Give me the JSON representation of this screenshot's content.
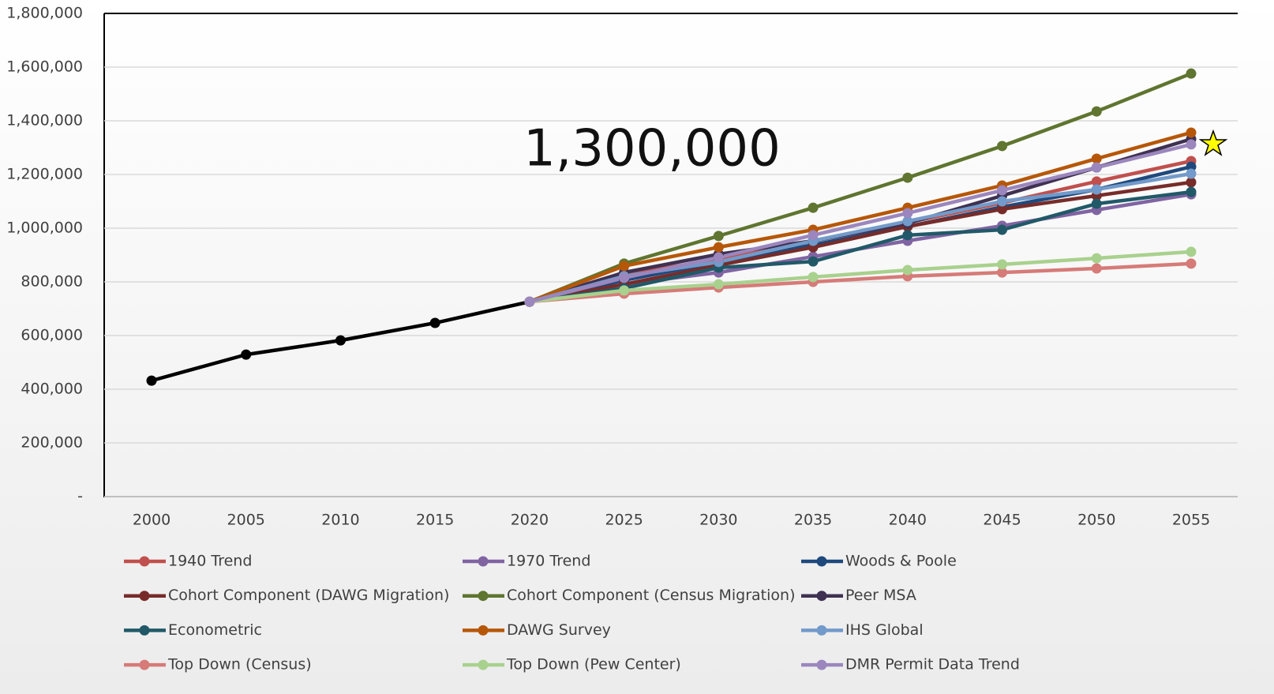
{
  "chart_data": {
    "type": "line",
    "annotation": "1,300,000",
    "categories": [
      "2000",
      "2005",
      "2010",
      "2015",
      "2020",
      "2025",
      "2030",
      "2035",
      "2040",
      "2045",
      "2050",
      "2055"
    ],
    "ylim": [
      0,
      1800000
    ],
    "yticks": [
      {
        "value": 0,
        "label": "-"
      },
      {
        "value": 200000,
        "label": "200,000"
      },
      {
        "value": 400000,
        "label": "400,000"
      },
      {
        "value": 600000,
        "label": "600,000"
      },
      {
        "value": 800000,
        "label": "800,000"
      },
      {
        "value": 1000000,
        "label": "1,000,000"
      },
      {
        "value": 1200000,
        "label": "1,200,000"
      },
      {
        "value": 1400000,
        "label": "1,400,000"
      },
      {
        "value": 1600000,
        "label": "1,600,000"
      },
      {
        "value": 1800000,
        "label": "1,800,000"
      }
    ],
    "grid": true,
    "legend": "bottom",
    "series": [
      {
        "color": "#000000",
        "values": [
          432000,
          529000,
          582000,
          647000,
          726000,
          null,
          null,
          null,
          null,
          null,
          null,
          null
        ]
      },
      {
        "name": "1940 Trend",
        "color": "#c0504d",
        "values": [
          null,
          null,
          null,
          null,
          726000,
          826000,
          885000,
          953000,
          1021000,
          1094000,
          1174000,
          1250000
        ]
      },
      {
        "name": "1970 Trend",
        "color": "#8064a2",
        "values": [
          null,
          null,
          null,
          null,
          726000,
          791000,
          835000,
          894000,
          953000,
          1009000,
          1068000,
          1126000
        ]
      },
      {
        "name": "Woods & Poole",
        "color": "#1f497d",
        "values": [
          null,
          null,
          null,
          null,
          726000,
          806000,
          874000,
          938000,
          1006000,
          1079000,
          1144000,
          1229000
        ]
      },
      {
        "name": "Cohort Component (DAWG Migration)",
        "color": "#772c2a",
        "values": [
          null,
          null,
          null,
          null,
          726000,
          791000,
          862000,
          929000,
          1006000,
          1071000,
          1121000,
          1171000
        ]
      },
      {
        "name": "Cohort Component (Census Migration)",
        "color": "#5f7530",
        "values": [
          null,
          null,
          null,
          null,
          726000,
          868000,
          971000,
          1076000,
          1188000,
          1306000,
          1435000,
          1576000
        ]
      },
      {
        "name": "Peer MSA",
        "color": "#3f3151",
        "values": [
          null,
          null,
          null,
          null,
          726000,
          835000,
          903000,
          953000,
          1018000,
          1121000,
          1226000,
          1332000
        ]
      },
      {
        "name": "Econometric",
        "color": "#215968",
        "values": [
          null,
          null,
          null,
          null,
          726000,
          776000,
          853000,
          876000,
          974000,
          994000,
          1091000,
          1135000
        ]
      },
      {
        "name": "DAWG Survey",
        "color": "#b65708",
        "values": [
          null,
          null,
          null,
          null,
          726000,
          859000,
          929000,
          994000,
          1076000,
          1159000,
          1259000,
          1356000
        ]
      },
      {
        "name": "IHS Global",
        "color": "#729aca",
        "values": [
          null,
          null,
          null,
          null,
          726000,
          821000,
          874000,
          953000,
          1026000,
          1100000,
          1144000,
          1203000
        ]
      },
      {
        "name": "Top Down (Census)",
        "color": "#d67b78",
        "values": [
          null,
          null,
          null,
          null,
          726000,
          756000,
          779000,
          800000,
          821000,
          835000,
          850000,
          868000
        ]
      },
      {
        "name": "Top Down (Pew Center)",
        "color": "#a9d18e",
        "values": [
          null,
          null,
          null,
          null,
          726000,
          768000,
          791000,
          818000,
          844000,
          865000,
          888000,
          912000
        ]
      },
      {
        "name": "DMR Permit Data Trend",
        "color": "#9b86bd",
        "values": [
          null,
          null,
          null,
          null,
          726000,
          815000,
          891000,
          974000,
          1056000,
          1141000,
          1226000,
          1312000
        ]
      }
    ]
  }
}
